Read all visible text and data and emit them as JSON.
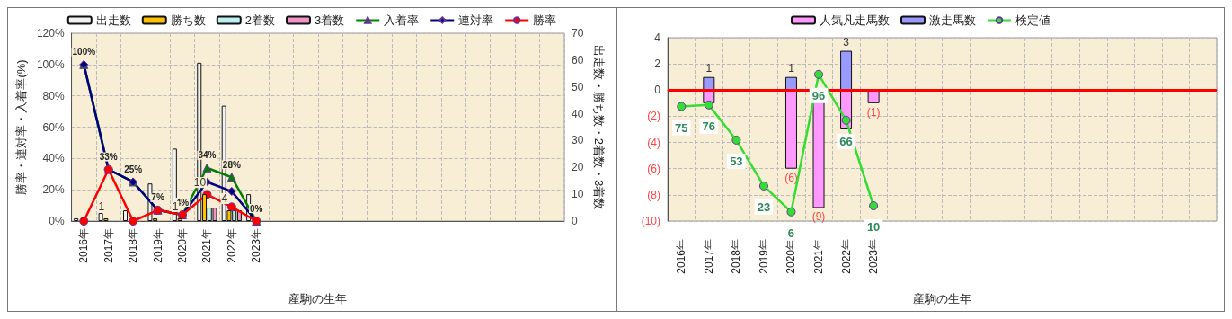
{
  "chart_data": [
    {
      "type": "bar",
      "xlabel": "産駒の生年",
      "ylabel": "勝率・連対率・入着率(%)",
      "y2label": "出走数・勝ち数・2着数・3着数",
      "categories": [
        "2016年",
        "2017年",
        "2018年",
        "2019年",
        "2020年",
        "2021年",
        "2022年",
        "2023年",
        null,
        null,
        null,
        null,
        null,
        null,
        null,
        null,
        null,
        null,
        null,
        null
      ],
      "series": [
        {
          "name": "出走数",
          "axis": "y2",
          "color": "#f2f2f2",
          "values": [
            1,
            3,
            4,
            14,
            27,
            59,
            43,
            10,
            null,
            null,
            null,
            null,
            null,
            null,
            null,
            null,
            null,
            null,
            null,
            null
          ]
        },
        {
          "name": "勝ち数",
          "axis": "y2",
          "color": "#ffc000",
          "values": [
            0,
            1,
            0,
            1,
            1,
            10,
            4,
            0,
            null,
            null,
            null,
            null,
            null,
            null,
            null,
            null,
            null,
            null,
            null,
            null
          ],
          "value_labels": [
            null,
            "1",
            null,
            null,
            "1",
            "10",
            "4",
            null,
            null,
            null,
            null,
            null,
            null,
            null,
            null,
            null,
            null,
            null,
            null,
            null
          ]
        },
        {
          "name": "2着数",
          "axis": "y2",
          "color": "#bdf0f0",
          "values": [
            0,
            0,
            0,
            0,
            0,
            5,
            4,
            0,
            null,
            null,
            null,
            null,
            null,
            null,
            null,
            null,
            null,
            null,
            null,
            null
          ]
        },
        {
          "name": "3着数",
          "axis": "y2",
          "color": "#f094c8",
          "values": [
            0,
            0,
            0,
            0,
            0,
            5,
            4,
            0,
            null,
            null,
            null,
            null,
            null,
            null,
            null,
            null,
            null,
            null,
            null,
            null
          ]
        },
        {
          "name": "入着率",
          "type": "line",
          "marker": "triangle",
          "color": "#008000",
          "values": [
            100,
            33,
            25,
            7,
            4,
            34,
            28,
            0,
            null,
            null,
            null,
            null,
            null,
            null,
            null,
            null,
            null,
            null,
            null,
            null
          ],
          "value_labels": [
            "100%",
            "33%",
            "25%",
            "7%",
            "4%",
            "34%",
            "28%",
            "0%",
            null,
            null,
            null,
            null,
            null,
            null,
            null,
            null,
            null,
            null,
            null,
            null
          ]
        },
        {
          "name": "連対率",
          "type": "line",
          "marker": "diamond",
          "color": "#000080",
          "values": [
            100,
            33,
            25,
            7,
            4,
            25,
            19,
            0,
            null,
            null,
            null,
            null,
            null,
            null,
            null,
            null,
            null,
            null,
            null,
            null
          ]
        },
        {
          "name": "勝率",
          "type": "line",
          "marker": "circle",
          "color": "#ff0000",
          "values": [
            0,
            33,
            0,
            7,
            4,
            17,
            9,
            0,
            null,
            null,
            null,
            null,
            null,
            null,
            null,
            null,
            null,
            null,
            null,
            null
          ]
        }
      ],
      "ylim": [
        0,
        120
      ],
      "yticks": [
        {
          "value": 0,
          "label": "0%"
        },
        {
          "value": 20,
          "label": "20%"
        },
        {
          "value": 40,
          "label": "40%"
        },
        {
          "value": 60,
          "label": "60%"
        },
        {
          "value": 80,
          "label": "80%"
        },
        {
          "value": 100,
          "label": "100%"
        },
        {
          "value": 120,
          "label": "120%"
        }
      ],
      "y2lim": [
        0,
        70
      ],
      "y2ticks": [
        0,
        10,
        20,
        30,
        40,
        50,
        60,
        70
      ],
      "grid": true,
      "legend": "top"
    },
    {
      "type": "bar",
      "xlabel": "産駒の生年",
      "stacked": true,
      "categories": [
        "2016年",
        "2017年",
        "2018年",
        "2019年",
        "2020年",
        "2021年",
        "2022年",
        "2023年",
        null,
        null,
        null,
        null,
        null,
        null,
        null,
        null,
        null,
        null,
        null,
        null
      ],
      "series": [
        {
          "name": "人気凡走馬数",
          "color": "#ff99ff",
          "values": [
            null,
            -1,
            null,
            null,
            -6,
            -9,
            -3,
            -1,
            null,
            null,
            null,
            null,
            null,
            null,
            null,
            null,
            null,
            null,
            null,
            null
          ],
          "value_labels": [
            null,
            null,
            null,
            null,
            "(6)",
            "(9)",
            null,
            "(1)",
            null,
            null,
            null,
            null,
            null,
            null,
            null,
            null,
            null,
            null,
            null,
            null
          ]
        },
        {
          "name": "激走馬数",
          "color": "#9999ff",
          "values": [
            null,
            1,
            null,
            null,
            1,
            null,
            3,
            null,
            null,
            null,
            null,
            null,
            null,
            null,
            null,
            null,
            null,
            null,
            null,
            null
          ],
          "value_labels": [
            null,
            "1",
            null,
            null,
            "1",
            null,
            "3",
            null,
            null,
            null,
            null,
            null,
            null,
            null,
            null,
            null,
            null,
            null,
            null,
            null
          ]
        },
        {
          "name": "検定値",
          "type": "line",
          "marker": "circle",
          "axis": "y2",
          "color": "#33dd33",
          "values": [
            75,
            76,
            53,
            23,
            6,
            96,
            66,
            10,
            null,
            null,
            null,
            null,
            null,
            null,
            null,
            null,
            null,
            null,
            null,
            null
          ],
          "value_labels": [
            "75",
            "76",
            "53",
            "23",
            "6",
            "96",
            "66",
            "10",
            null,
            null,
            null,
            null,
            null,
            null,
            null,
            null,
            null,
            null,
            null,
            null
          ]
        }
      ],
      "ylim": [
        -10,
        4
      ],
      "yticks": [
        {
          "value": -10,
          "label": "(10)"
        },
        {
          "value": -8,
          "label": "(8)"
        },
        {
          "value": -6,
          "label": "(6)"
        },
        {
          "value": -4,
          "label": "(4)"
        },
        {
          "value": -2,
          "label": "(2)"
        },
        0,
        2,
        4
      ],
      "y2lim": [
        0,
        120
      ],
      "tick_labels": "xy",
      "ref_lines": [
        {
          "axis": "y",
          "value": 0,
          "color": "#ff0000"
        }
      ],
      "grid": true,
      "legend": "top"
    }
  ]
}
